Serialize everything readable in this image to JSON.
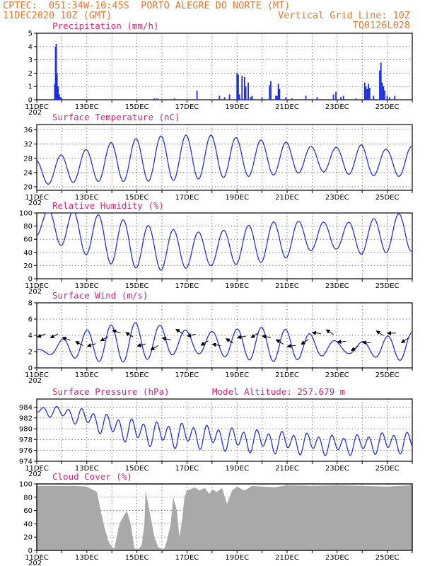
{
  "header": {
    "left_line1": "CPTEC:  051:34W-10:45S  PORTO ALEGRE DO NORTE (MT)",
    "left_line2": "11DEC2020 10Z (GMT)",
    "right_line2": "Vertical Grid Line: 10Z",
    "right_line3": "TQ0126L028"
  },
  "x_axis": {
    "day_start": 11,
    "day_end": 26,
    "tick_labels": [
      "11DEC",
      "13DEC",
      "15DEC",
      "17DEC",
      "19DEC",
      "21DEC",
      "23DEC",
      "25DEC"
    ],
    "year_fragment": "202"
  },
  "colors": {
    "line": "#2233dd",
    "bar": "#1a2ee0",
    "cloud": "#a9a9a9",
    "title": "#e0207a",
    "header": "#e8782a"
  },
  "chart_data": [
    {
      "type": "bar",
      "id": "precip",
      "title": "Precipitation (mm/h)",
      "ylim": [
        0,
        5
      ],
      "yticks": [
        0,
        1,
        2,
        3,
        4,
        5
      ],
      "x": [
        11.72,
        11.75,
        11.78,
        11.81,
        11.85,
        11.9,
        11.95,
        12.0,
        15.7,
        15.8,
        16.5,
        17.4,
        18.3,
        18.5,
        18.7,
        19.0,
        19.05,
        19.1,
        19.2,
        19.3,
        19.35,
        19.45,
        19.55,
        19.6,
        20.0,
        20.3,
        20.35,
        20.55,
        20.6,
        20.65,
        20.7,
        20.95,
        21.2,
        21.75,
        22.2,
        22.85,
        22.95,
        23.15,
        23.25,
        23.75,
        24.1,
        24.15,
        24.2,
        24.25,
        24.3,
        24.45,
        24.7,
        24.75,
        24.8,
        24.85,
        24.9,
        25.0,
        25.1,
        25.3
      ],
      "values": [
        1.2,
        4.0,
        4.2,
        2.0,
        1.0,
        0.4,
        0.2,
        0.1,
        0.1,
        0.1,
        0.1,
        0.7,
        0.3,
        0.2,
        0.4,
        2.0,
        1.9,
        0.4,
        1.8,
        1.7,
        1.0,
        1.3,
        0.2,
        0.3,
        0.2,
        1.1,
        1.4,
        0.3,
        0.3,
        1.2,
        0.8,
        0.2,
        0.1,
        0.3,
        0.2,
        0.4,
        0.6,
        0.2,
        0.3,
        0.1,
        1.3,
        1.0,
        0.8,
        1.2,
        0.9,
        0.3,
        2.2,
        2.8,
        1.3,
        1.0,
        0.7,
        0.3,
        0.2,
        0.3
      ]
    },
    {
      "type": "line",
      "id": "temp",
      "title": "Surface Temperature (nC)",
      "ylim": [
        19,
        37.5
      ],
      "yticks": [
        20,
        24,
        28,
        32,
        36
      ],
      "mean": [
        24,
        25,
        26,
        27,
        27.5,
        28,
        28.2,
        28.5,
        28.3,
        28.1,
        28.0,
        27.8,
        27.6,
        27.3,
        27.0,
        26.8
      ],
      "amp": [
        3.5,
        4.0,
        4.5,
        5.5,
        6.0,
        6.3,
        6.3,
        6.0,
        5.5,
        5.0,
        4.5,
        3.5,
        3.5,
        4.5,
        3.5,
        4.5
      ]
    },
    {
      "type": "line",
      "id": "rh",
      "title": "Relative Humidity (%)",
      "ylim": [
        0,
        100
      ],
      "yticks": [
        0,
        20,
        40,
        60,
        80,
        100
      ],
      "mean": [
        85,
        78,
        68,
        58,
        50,
        45,
        44,
        45,
        50,
        55,
        60,
        65,
        65,
        62,
        68,
        72
      ],
      "amp": [
        20,
        28,
        32,
        36,
        34,
        32,
        28,
        25,
        28,
        30,
        28,
        22,
        20,
        25,
        28,
        30
      ]
    },
    {
      "type": "line",
      "id": "wind",
      "title": "Surface Wind (m/s)",
      "ylim": [
        0,
        8
      ],
      "yticks": [
        0,
        2,
        4,
        6,
        8
      ],
      "mean": [
        2.0,
        2.5,
        2.8,
        3.0,
        3.2,
        3.3,
        3.2,
        3.0,
        3.0,
        2.9,
        2.8,
        2.7,
        2.5,
        2.4,
        2.5,
        2.6
      ],
      "amp": [
        0.8,
        1.2,
        1.6,
        1.8,
        2.0,
        2.0,
        1.9,
        1.8,
        1.6,
        1.6,
        1.5,
        1.4,
        1.2,
        1.2,
        1.3,
        1.3
      ]
    },
    {
      "type": "line",
      "id": "pres",
      "title": "Surface Pressure (hPa)",
      "title2": "Model Altitude: 257.679 m",
      "ylim": [
        974,
        985.5
      ],
      "yticks": [
        974,
        976,
        978,
        980,
        982,
        984
      ],
      "mean": [
        983.5,
        983.0,
        982.0,
        980.5,
        979.5,
        979.0,
        978.8,
        978.5,
        978.0,
        977.8,
        977.5,
        977.3,
        977.0,
        977.2,
        977.5,
        977.5
      ],
      "amp": [
        0.7,
        1.0,
        1.5,
        1.8,
        2.0,
        2.0,
        2.0,
        1.9,
        1.9,
        1.8,
        1.8,
        1.7,
        1.6,
        1.6,
        1.7,
        1.7
      ]
    },
    {
      "type": "area",
      "id": "cloud",
      "title": "Cloud Cover (%)",
      "ylim": [
        0,
        100
      ],
      "yticks": [
        0,
        20,
        40,
        60,
        80,
        100
      ],
      "x": [
        11.0,
        12.5,
        13.0,
        13.2,
        13.4,
        13.55,
        13.7,
        13.85,
        14.0,
        14.1,
        14.3,
        14.6,
        14.75,
        14.9,
        15.0,
        15.1,
        15.2,
        15.3,
        15.35,
        15.5,
        15.7,
        15.85,
        16.0,
        16.1,
        16.2,
        16.35,
        16.45,
        16.6,
        16.7,
        16.8,
        16.9,
        17.0,
        17.15,
        17.3,
        17.5,
        17.7,
        17.9,
        18.0,
        18.2,
        18.4,
        18.6,
        18.8,
        19.0,
        19.3,
        19.6,
        20.0,
        20.5,
        21.0,
        22.0,
        23.0,
        24.0,
        25.0,
        26.0
      ],
      "values": [
        97,
        97,
        96,
        92,
        88,
        60,
        35,
        15,
        5,
        3,
        40,
        60,
        40,
        3,
        2,
        3,
        10,
        40,
        90,
        60,
        20,
        5,
        2,
        3,
        15,
        40,
        80,
        60,
        20,
        45,
        80,
        90,
        92,
        95,
        90,
        94,
        85,
        92,
        88,
        94,
        70,
        90,
        96,
        90,
        97,
        96,
        95,
        98,
        97,
        98,
        97,
        96,
        98
      ]
    }
  ]
}
